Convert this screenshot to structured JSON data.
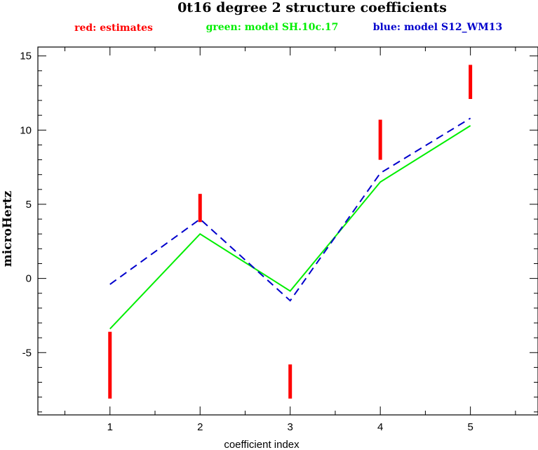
{
  "chart_data": {
    "type": "line",
    "title": "0t16 degree 2 structure coefficients",
    "xlabel": "coefficient index",
    "ylabel": "microHertz",
    "xlim": [
      0.2,
      5.75
    ],
    "ylim": [
      -9.2,
      15.6
    ],
    "x_ticks": [
      1,
      2,
      3,
      4,
      5
    ],
    "x_tick_labels": [
      "1",
      "2",
      "3",
      "4",
      "5"
    ],
    "y_ticks": [
      -5,
      0,
      5,
      10,
      15
    ],
    "y_tick_labels": [
      "-5",
      "0",
      "5",
      "10",
      "15"
    ],
    "grid": false,
    "legend_position": "top",
    "estimates": {
      "label": "red: estimates",
      "color": "#ff0000",
      "ranges": [
        {
          "x": 1,
          "low": -8.1,
          "high": -3.6
        },
        {
          "x": 2,
          "low": 3.8,
          "high": 5.7
        },
        {
          "x": 3,
          "low": -8.1,
          "high": -5.8
        },
        {
          "x": 4,
          "low": 8.0,
          "high": 10.7
        },
        {
          "x": 5,
          "low": 12.1,
          "high": 14.4
        }
      ]
    },
    "series": [
      {
        "label": "green: model SH.10c.17",
        "color": "#00ee00",
        "style": "solid",
        "x": [
          1,
          2,
          3,
          4,
          5
        ],
        "values": [
          -3.4,
          3.0,
          -0.85,
          6.5,
          10.3
        ]
      },
      {
        "label": "blue: model S12_WM13",
        "color": "#0000cc",
        "style": "dashed",
        "x": [
          1,
          2,
          3,
          4,
          5
        ],
        "values": [
          -0.4,
          4.0,
          -1.5,
          7.1,
          10.8
        ]
      }
    ]
  }
}
